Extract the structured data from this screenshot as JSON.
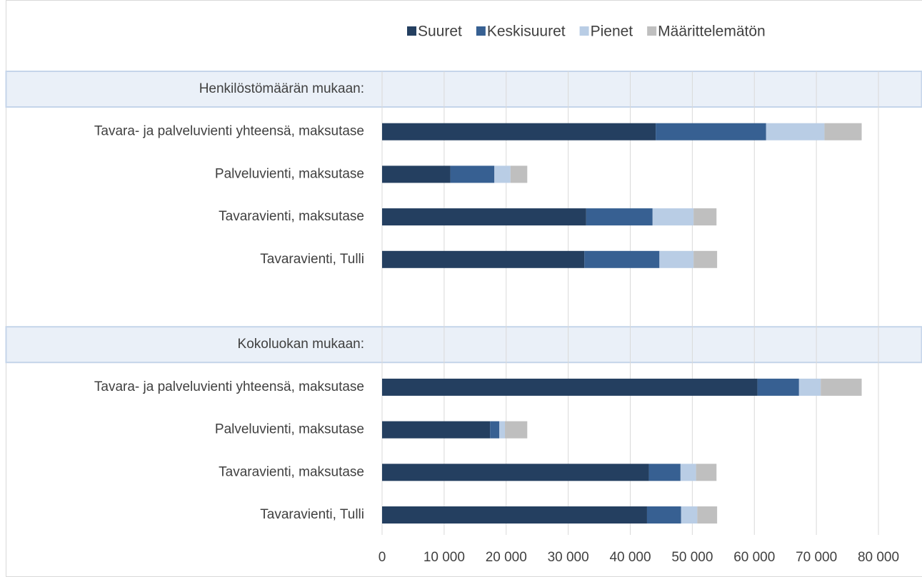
{
  "chart_data": {
    "type": "stacked_bar_horizontal",
    "categories": [
      "Henkilöstömäärän mukaan:",
      "Tavara- ja palveluvienti yhteensä, maksutase",
      "Palveluvienti, maksutase",
      "Tavaravienti, maksutase",
      "Tavaravienti, Tulli",
      null,
      "Kokoluokan mukaan:",
      "Tavara- ja palveluvienti yhteensä, maksutase",
      "Palveluvienti, maksutase",
      "Tavaravienti, maksutase",
      "Tavaravienti, Tulli"
    ],
    "series": [
      {
        "name": "Suuret",
        "color": "#243f60",
        "values": [
          null,
          44100,
          11000,
          32900,
          32600,
          null,
          null,
          60500,
          17400,
          43000,
          42700
        ]
      },
      {
        "name": "Keskisuuret",
        "color": "#376092",
        "values": [
          null,
          17800,
          7100,
          10700,
          12100,
          null,
          null,
          6700,
          1500,
          5100,
          5500
        ]
      },
      {
        "name": "Pienet",
        "color": "#b9cde5",
        "values": [
          null,
          9400,
          2600,
          6600,
          5500,
          null,
          null,
          3500,
          900,
          2500,
          2600
        ]
      },
      {
        "name": "Määrittelemätön",
        "color": "#bfbfbf",
        "values": [
          null,
          6000,
          2700,
          3700,
          3800,
          null,
          null,
          6600,
          3600,
          3300,
          3200
        ]
      }
    ],
    "xlim": [
      0,
      80000
    ],
    "xticks": [
      0,
      {
        "value": 10000,
        "label": "10 000"
      },
      {
        "value": 20000,
        "label": "20 000"
      },
      {
        "value": 30000,
        "label": "30 000"
      },
      {
        "value": 40000,
        "label": "40 000"
      },
      {
        "value": 50000,
        "label": "50 000"
      },
      {
        "value": 60000,
        "label": "60 000"
      },
      {
        "value": 70000,
        "label": "70 000"
      },
      {
        "value": 80000,
        "label": "80 000"
      }
    ],
    "grid": true,
    "legend": "top"
  }
}
